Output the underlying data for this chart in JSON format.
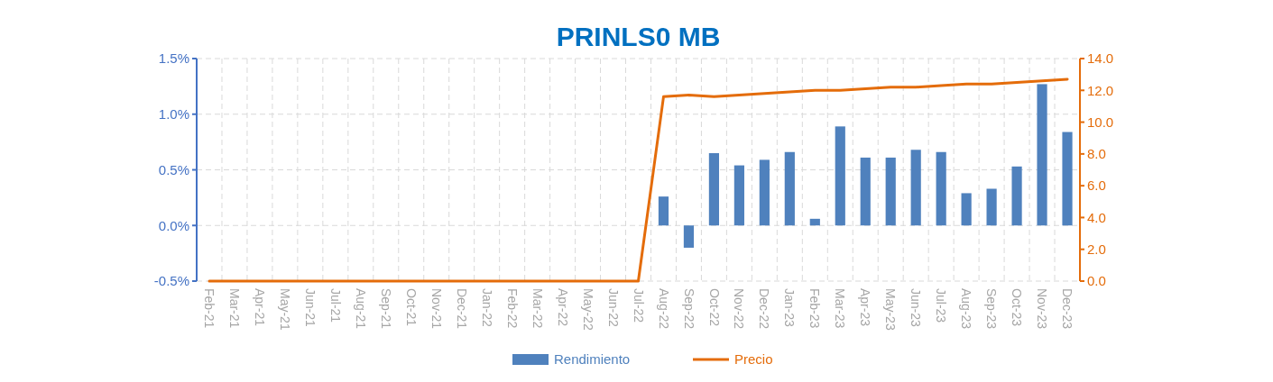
{
  "chart_data": {
    "type": "bar",
    "title": "PRINLS0 MB",
    "categories": [
      "Feb-21",
      "Mar-21",
      "Apr-21",
      "May-21",
      "Jun-21",
      "Jul-21",
      "Aug-21",
      "Sep-21",
      "Oct-21",
      "Nov-21",
      "Dec-21",
      "Jan-22",
      "Feb-22",
      "Mar-22",
      "Apr-22",
      "May-22",
      "Jun-22",
      "Jul-22",
      "Aug-22",
      "Sep-22",
      "Oct-22",
      "Nov-22",
      "Dec-22",
      "Jan-23",
      "Feb-23",
      "Mar-23",
      "Apr-23",
      "May-23",
      "Jun-23",
      "Jul-23",
      "Aug-23",
      "Sep-23",
      "Oct-23",
      "Nov-23",
      "Dec-23"
    ],
    "series": [
      {
        "name": "Rendimiento",
        "color": "#4f81bd",
        "values": [
          null,
          null,
          null,
          null,
          null,
          null,
          null,
          null,
          null,
          null,
          null,
          null,
          null,
          null,
          null,
          null,
          null,
          null,
          0.26,
          -0.2,
          0.65,
          0.54,
          0.59,
          0.66,
          0.06,
          0.89,
          0.61,
          0.61,
          0.68,
          0.66,
          0.29,
          0.33,
          0.53,
          1.27,
          0.84
        ]
      },
      {
        "name": "Precio",
        "type": "line",
        "axis": "y2",
        "color": "#e46c0a",
        "values": [
          0,
          0,
          0,
          0,
          0,
          0,
          0,
          0,
          0,
          0,
          0,
          0,
          0,
          0,
          0,
          0,
          0,
          0,
          11.6,
          11.7,
          11.6,
          11.7,
          11.8,
          11.9,
          12.0,
          12.0,
          12.1,
          12.2,
          12.2,
          12.3,
          12.4,
          12.4,
          12.5,
          12.6,
          12.7
        ]
      }
    ],
    "ylim": [
      -0.5,
      1.5
    ],
    "yticks": [
      {
        "value": -0.5,
        "label": "-0.5%"
      },
      {
        "value": 0,
        "label": "0.0%"
      },
      {
        "value": 0.5,
        "label": "0.5%"
      },
      {
        "value": 1,
        "label": "1.0%"
      },
      {
        "value": 1.5,
        "label": "1.5%"
      }
    ],
    "y2lim": [
      0,
      14
    ],
    "y2ticks": [
      {
        "value": 0,
        "label": "0.0"
      },
      {
        "value": 2,
        "label": "2.0"
      },
      {
        "value": 4,
        "label": "4.0"
      },
      {
        "value": 6,
        "label": "6.0"
      },
      {
        "value": 8,
        "label": "8.0"
      },
      {
        "value": 10,
        "label": "10.0"
      },
      {
        "value": 12,
        "label": "12.0"
      },
      {
        "value": 14,
        "label": "14.0"
      }
    ],
    "grid": true,
    "legend": "bottom",
    "marker": "none",
    "line_style": "solid"
  }
}
